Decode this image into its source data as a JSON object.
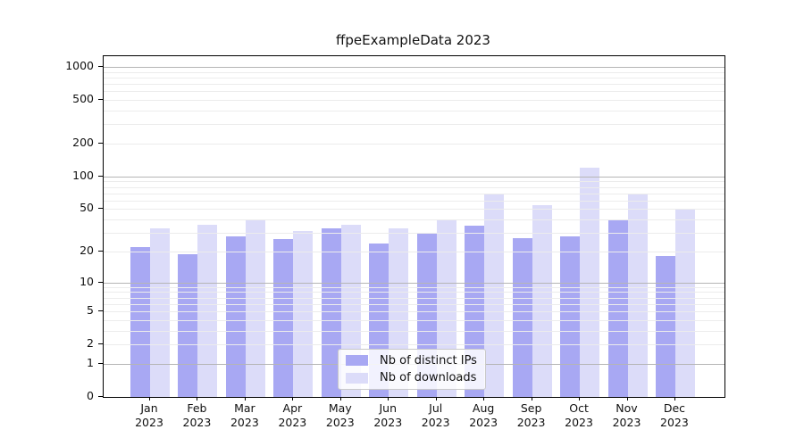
{
  "chart_data": {
    "type": "bar",
    "title": "ffpeExampleData 2023",
    "categories": [
      "Jan",
      "Feb",
      "Mar",
      "Apr",
      "May",
      "Jun",
      "Jul",
      "Aug",
      "Sep",
      "Oct",
      "Nov",
      "Dec"
    ],
    "year_label": "2023",
    "series": [
      {
        "name": "Nb of distinct IPs",
        "color": "#a8a8f3",
        "values": [
          22,
          19,
          28,
          26,
          33,
          24,
          30,
          35,
          27,
          28,
          39,
          18
        ]
      },
      {
        "name": "Nb of downloads",
        "color": "#dcdcf9",
        "values": [
          33,
          36,
          40,
          31,
          36,
          33,
          40,
          68,
          54,
          120,
          68,
          50
        ]
      }
    ],
    "y_ticks": [
      0,
      1,
      2,
      5,
      10,
      20,
      50,
      100,
      200,
      500,
      1000
    ],
    "y_scale": "log1p",
    "ylim": [
      0,
      1250
    ],
    "xlabel": "",
    "ylabel": "",
    "grid": "on",
    "legend_position": "inside-bottom-center"
  },
  "colors": {
    "grid_major": "#b5b5b5",
    "grid_minor": "#ececec",
    "spine": "#000000",
    "legend_border": "#c9c9c9"
  }
}
